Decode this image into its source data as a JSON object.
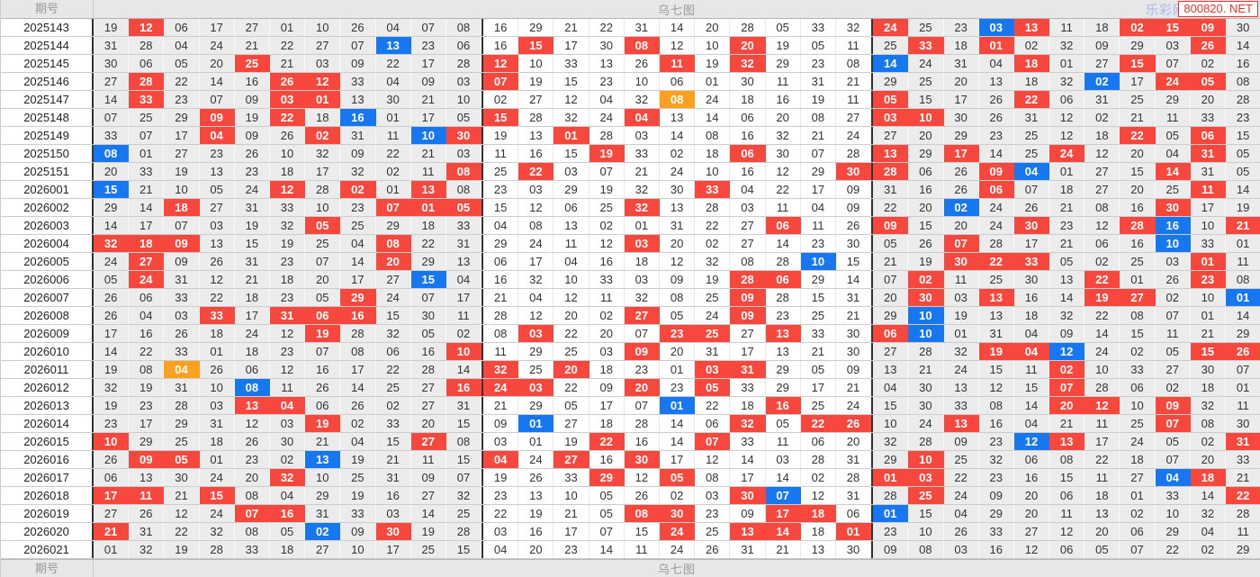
{
  "header": {
    "period_label": "期号",
    "chart_title": "乌七图",
    "site_name": "乐彩网",
    "watermark": "800820. NET"
  },
  "footer": {
    "period_label": "期号",
    "chart_title": "乌七图"
  },
  "colors": {
    "highlight_red": "#f8473c",
    "highlight_blue": "#1677f0",
    "highlight_orange": "#ffa01e",
    "band_gray": "#ececec",
    "watermark_red": "#e8332a",
    "site_blue": "#a8b8f0"
  },
  "table": {
    "columns": 33,
    "group_size": 11,
    "legend": {
      "r": "red-highlight",
      "b": "blue-highlight",
      "o": "orange-highlight"
    },
    "rows": [
      {
        "period": "2025143",
        "cells": "19,12r,06,17,27,01,10,26,04,07,08,16,29,21,22,31,14,20,28,05,33,32,24r,25,23,03b,13r,11,18,02r,15r,09r,30"
      },
      {
        "period": "2025144",
        "cells": "31,28,04,24,21,22,27,07,13b,23,06,16,15r,17,30,08r,12,10,20r,19,05,11,25,33r,18,01r,02,32,09,29,03,26r,14"
      },
      {
        "period": "2025145",
        "cells": "30,06,05,20,25r,21,03,09,22,17,28,12r,10,33,13,26,11r,19,32r,29,23,08,14b,24,31,04,18r,01,27,15r,07,02,16"
      },
      {
        "period": "2025146",
        "cells": "27,28r,22,14,16,26r,12r,33,04,09,03,07r,19,15,23,10,06,01,30,11,31,21,29,25,20,13,18,32,02b,17,24r,05r,08"
      },
      {
        "period": "2025147",
        "cells": "14,33r,23,07,09,03r,01r,13,30,21,10,02,27,12,04,32,08o,24,18,16,19,11,05r,15,17,26,22r,06,31,25,29,20,28"
      },
      {
        "period": "2025148",
        "cells": "07,25,29,09r,19,22r,18,16b,01,17,05,15r,28,32,24,04r,13,14,06,20,08,27,03r,10r,30,26,31,12,02,21,11,33,23"
      },
      {
        "period": "2025149",
        "cells": "33,07,17,04r,09,26,02r,31,11,10b,30r,19,13,01r,28,03,14,08,16,32,21,24,27,20,29,23,25,12,18,22r,05,06r,15"
      },
      {
        "period": "2025150",
        "cells": "08b,01,27,23,26,10,32,09,22,21,03,11,16,15,19r,33,02,18,06r,30,07,28,13r,29,17r,14,25,24r,12,20,04,31r,05"
      },
      {
        "period": "2025151",
        "cells": "20,33,19,13,23,18,17,32,02,11,08r,25,22r,03,07,21,24,10,16,12,29,30r,28r,06,26,09r,04b,01,27,15,14r,31,05"
      },
      {
        "period": "2026001",
        "cells": "15b,21,10,05,24,12r,28,02r,01,13r,08,23,03,29,19,32,30,33r,04,22,17,09,31,16,26,06r,07,18,27,20,25,11r,14"
      },
      {
        "period": "2026002",
        "cells": "29,14,18r,27,31,33,10,23,07r,01r,05r,15,12,06,25,32r,13,28,03,11,04,09,22,20,02b,24,26,21,08,16,30r,17,19"
      },
      {
        "period": "2026003",
        "cells": "14,17,07,03,19,32,05r,25,29,18,33,04,08,13,02,01,31,22,27,06r,11,26,09r,15,20,24,30r,23,12,28r,16b,10,21r"
      },
      {
        "period": "2026004",
        "cells": "32r,18r,09r,13,15,19,25,04,08r,22,31,29,24,11,12,03r,20,02,27,14,23,30,05,26,07r,28,17,21,06,16,10b,33,01"
      },
      {
        "period": "2026005",
        "cells": "24,27r,09,26,31,23,07,14,20r,29,13,06,17,04,16,18,12,32,08,28,10b,15,21,19,30r,22r,33r,05,02,25,03,01r,11"
      },
      {
        "period": "2026006",
        "cells": "05,24r,31,12,21,18,20,17,27,15b,04,16,32,10,33,03,09,19,28r,06r,29,14,07,02r,11,25,30,13,22r,01,26,23r,08"
      },
      {
        "period": "2026007",
        "cells": "26,06,33,22,18,23,05,29r,24,07,17,21,04,12,11,32,08,25,09r,28,15,31,20,30r,03,13r,16,14,19r,27r,02,10,01b"
      },
      {
        "period": "2026008",
        "cells": "26,04,03,33r,17,31r,06r,16r,15,30,11,28,12,20,02,27r,05,24,09r,23,25,21,29,10b,19,13,18,32,22,08,07,01,14"
      },
      {
        "period": "2026009",
        "cells": "17,16,26,18,24,12,19r,28,32,05,02,08,03r,22,20,07,23r,25r,27,13r,33,30,06r,10b,01,31,04,09,14,15,11,21,29"
      },
      {
        "period": "2026010",
        "cells": "14,22,33,01,18,23,07,08,06,16,10r,11,29,25,03,09r,20,31,17,13,21,30,27,28,32,19r,04r,12b,24,02,05,15r,26r"
      },
      {
        "period": "2026011",
        "cells": "19,08,04o,26,06,12,16,17,22,28,14,32r,25,20r,18,23,01,03r,31r,29,05,09,13,21,24,15,11,02r,10,33,27,30,07"
      },
      {
        "period": "2026012",
        "cells": "32,19,31,10,08b,11,26,14,25,27,16r,24r,03r,22,09,20r,23,05r,33,29,17,21,04,30,13,12,15,07r,28,06,02,18,01"
      },
      {
        "period": "2026013",
        "cells": "19,23,28,03,13r,04r,06,26,02,27,31,21,29,05,17,07,01b,22,18,16r,25,24,15,30,33,08,14,20r,12r,10,09r,32,11"
      },
      {
        "period": "2026014",
        "cells": "23,17,29,31,12,03,19r,02,33,20,15,09,01b,27,18,28,14,06,32r,05,22r,26r,10,24,13r,16,04,21,11,25,07r,08,30"
      },
      {
        "period": "2026015",
        "cells": "10r,29,25,18,26,30,21,04,15,27r,08,03,01,19,22r,16,14,07r,33,11,06,20,32,28,09,23,12b,13r,17,24,05,02,31r"
      },
      {
        "period": "2026016",
        "cells": "26,09r,05r,01,23,02,13b,19,21,11,15,04r,24,27r,16,30r,17,12,14,03,28,31,29,10r,25,32,06,08,22,18,07,20,33"
      },
      {
        "period": "2026017",
        "cells": "06,13,30,24,20,32r,10,25,31,09,07,19,26,33,29r,12,05r,08,17,14,02,28,01r,03r,22,23,16,15,11,27,04b,18r,21"
      },
      {
        "period": "2026018",
        "cells": "17r,11r,21,15r,08,04,29,19,16,27,32,23,13,10,05,26,02,03,30r,07b,12,31,28,25r,24,09,20,06,18,01,33,14,22r"
      },
      {
        "period": "2026019",
        "cells": "27,26,12,24,07r,16r,31,33,03,14,25,22,19,21,05,08r,30r,23,09,17r,18r,06,01b,15,04,29,20,11,13,02,10,32,28"
      },
      {
        "period": "2026020",
        "cells": "21r,31,22,32,08,05,02b,09,30r,19,28,03,16,17,07,15,24r,25,13r,14r,18,01r,23,10,26,33,27,12,20,06,29,04,11"
      },
      {
        "period": "2026021",
        "cells": "01,32,19,28,33,18,27,10,17,25,15,04,20,23,14,11,24,26,31,21,13,30,09,08,03,16,12,06,05,07,22,02,29"
      }
    ]
  }
}
